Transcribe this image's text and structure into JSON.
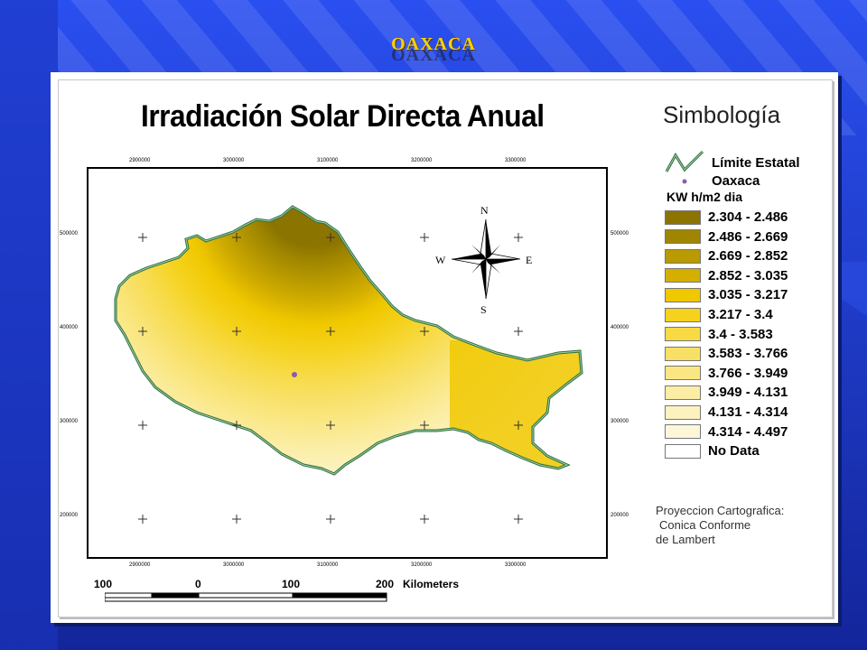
{
  "slide": {
    "title": "OAXACA",
    "background_color": "#1e3fcf",
    "title_color": "#ffd200"
  },
  "map": {
    "title": "Irradiación Solar Directa Anual",
    "x_ticks": [
      "2900000",
      "3000000",
      "3100000",
      "3200000",
      "3300000"
    ],
    "y_ticks": [
      "500000",
      "400000",
      "300000",
      "200000"
    ],
    "city_marker": "Oaxaca",
    "north_arrow": {
      "n": "N",
      "s": "S",
      "e": "E",
      "w": "W"
    }
  },
  "legend": {
    "title": "Simbología",
    "boundary_label": "Límite Estatal",
    "city_label": "Oaxaca",
    "units_label": "KW h/m2 dia",
    "classes": [
      {
        "label": "2.304 - 2.486",
        "color": "#8c7400"
      },
      {
        "label": "2.486 - 2.669",
        "color": "#a08600"
      },
      {
        "label": "2.669 - 2.852",
        "color": "#b99a00"
      },
      {
        "label": "2.852 - 3.035",
        "color": "#d4af00"
      },
      {
        "label": "3.035 - 3.217",
        "color": "#f0c800"
      },
      {
        "label": "3.217 - 3.4",
        "color": "#f5d21e"
      },
      {
        "label": "3.4 - 3.583",
        "color": "#f7da44"
      },
      {
        "label": "3.583 - 3.766",
        "color": "#f8e066"
      },
      {
        "label": "3.766 - 3.949",
        "color": "#fae784"
      },
      {
        "label": "3.949 - 4.131",
        "color": "#fbeda3"
      },
      {
        "label": "4.131 - 4.314",
        "color": "#fcf2bf"
      },
      {
        "label": "4.314 - 4.497",
        "color": "#fdf7da"
      },
      {
        "label": "No Data",
        "color": "#ffffff"
      }
    ]
  },
  "projection": {
    "line1": "Proyeccion Cartografica:",
    "line2": "Conica Conforme",
    "line3": "de Lambert"
  },
  "scale_bar": {
    "labels": [
      "100",
      "0",
      "100",
      "200"
    ],
    "units": "Kilometers"
  }
}
